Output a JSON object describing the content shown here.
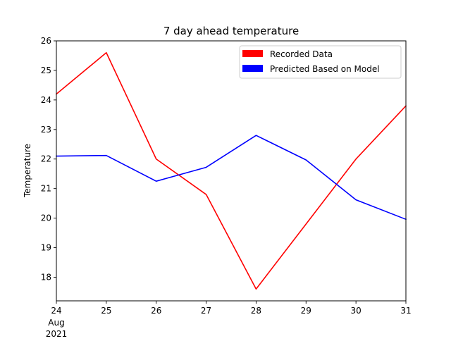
{
  "chart_data": {
    "type": "line",
    "title": "7 day ahead temperature",
    "xlabel": "",
    "ylabel": "Temperature",
    "x": [
      "2021-08-24",
      "2021-08-25",
      "2021-08-26",
      "2021-08-27",
      "2021-08-28",
      "2021-08-29",
      "2021-08-30",
      "2021-08-31"
    ],
    "x_tick_labels": [
      "24",
      "25",
      "26",
      "27",
      "28",
      "29",
      "30",
      "31"
    ],
    "x_tick_sublabel": [
      "Aug",
      "2021"
    ],
    "xlim": [
      "2021-08-24",
      "2021-08-31"
    ],
    "ylim": [
      17.2,
      26
    ],
    "y_ticks": [
      18,
      19,
      20,
      21,
      22,
      23,
      24,
      25,
      26
    ],
    "grid": false,
    "legend_position": "top-right",
    "series": [
      {
        "name": "Recorded Data",
        "color": "#ff0000",
        "values": [
          24.2,
          25.6,
          22.0,
          20.8,
          17.6,
          19.8,
          22.0,
          23.8
        ]
      },
      {
        "name": "Predicted Based on Model",
        "color": "#0000ff",
        "values": [
          22.1,
          22.12,
          21.25,
          21.72,
          22.8,
          21.97,
          20.62,
          19.96
        ]
      }
    ]
  }
}
